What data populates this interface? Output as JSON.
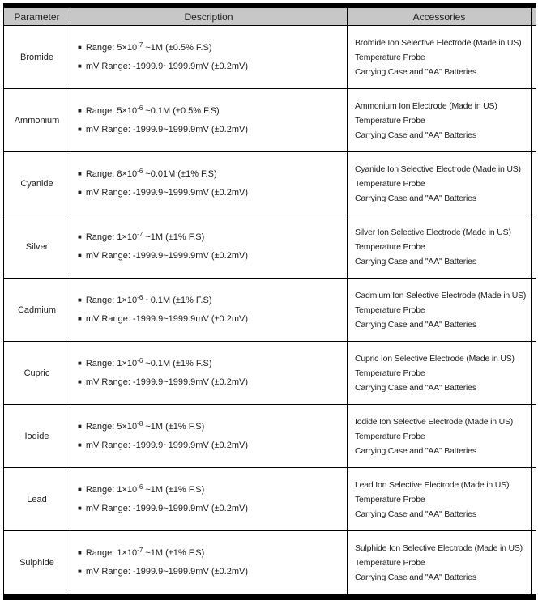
{
  "table": {
    "header": {
      "parameter": "Parameter",
      "description": "Description",
      "accessories": "Accessories"
    },
    "bullet": "■",
    "rows": [
      {
        "parameter": "Bromide",
        "range": {
          "prefix": "Range: 5×10",
          "exp": "-7",
          "suffix": " ~1M (±0.5% F.S)"
        },
        "mv_range": "mV Range: -1999.9~1999.9mV (±0.2mV)",
        "accessories": [
          "Bromide Ion Selective Electrode (Made in US)",
          "Temperature Probe",
          "Carrying Case and \"AA\" Batteries"
        ]
      },
      {
        "parameter": "Ammonium",
        "range": {
          "prefix": "Range: 5×10",
          "exp": "-6",
          "suffix": " ~0.1M (±0.5% F.S)"
        },
        "mv_range": "mV Range: -1999.9~1999.9mV (±0.2mV)",
        "accessories": [
          "Ammonium Ion Electrode (Made in US)",
          "Temperature Probe",
          "Carrying Case and \"AA\" Batteries"
        ]
      },
      {
        "parameter": "Cyanide",
        "range": {
          "prefix": "Range: 8×10",
          "exp": "-6",
          "suffix": " ~0.01M (±1% F.S)"
        },
        "mv_range": "mV Range: -1999.9~1999.9mV (±0.2mV)",
        "accessories": [
          "Cyanide Ion Selective Electrode (Made in US)",
          "Temperature Probe",
          "Carrying Case and \"AA\" Batteries"
        ]
      },
      {
        "parameter": "Silver",
        "range": {
          "prefix": "Range: 1×10",
          "exp": "-7",
          "suffix": " ~1M (±1% F.S)"
        },
        "mv_range": "mV Range: -1999.9~1999.9mV (±0.2mV)",
        "accessories": [
          "Silver Ion Selective Electrode (Made in US)",
          "Temperature Probe",
          "Carrying Case and \"AA\" Batteries"
        ]
      },
      {
        "parameter": "Cadmium",
        "range": {
          "prefix": "Range: 1×10",
          "exp": "-6",
          "suffix": " ~0.1M (±1% F.S)"
        },
        "mv_range": "mV Range: -1999.9~1999.9mV (±0.2mV)",
        "accessories": [
          "Cadmium Ion Selective Electrode (Made in US)",
          "Temperature Probe",
          "Carrying Case and \"AA\" Batteries"
        ]
      },
      {
        "parameter": "Cupric",
        "range": {
          "prefix": "Range: 1×10",
          "exp": "-6",
          "suffix": " ~0.1M (±1% F.S)"
        },
        "mv_range": "mV Range: -1999.9~1999.9mV (±0.2mV)",
        "accessories": [
          "Cupric Ion Selective Electrode (Made in US)",
          "Temperature Probe",
          "Carrying Case and \"AA\" Batteries"
        ]
      },
      {
        "parameter": "Iodide",
        "range": {
          "prefix": "Range: 5×10",
          "exp": "-8",
          "suffix": " ~1M (±1% F.S)"
        },
        "mv_range": "mV Range: -1999.9~1999.9mV (±0.2mV)",
        "accessories": [
          "Iodide Ion Selective Electrode (Made in US)",
          "Temperature Probe",
          "Carrying Case and \"AA\" Batteries"
        ]
      },
      {
        "parameter": "Lead",
        "range": {
          "prefix": "Range: 1×10",
          "exp": "-6",
          "suffix": " ~1M (±1% F.S)"
        },
        "mv_range": "mV Range: -1999.9~1999.9mV (±0.2mV)",
        "accessories": [
          "Lead Ion Selective Electrode (Made in US)",
          "Temperature Probe",
          "Carrying Case and \"AA\" Batteries"
        ]
      },
      {
        "parameter": "Sulphide",
        "range": {
          "prefix": "Range: 1×10",
          "exp": "-7",
          "suffix": " ~1M (±1% F.S)"
        },
        "mv_range": "mV Range: -1999.9~1999.9mV (±0.2mV)",
        "accessories": [
          "Sulphide Ion Selective Electrode (Made in US)",
          "Temperature Probe",
          "Carrying Case and \"AA\" Batteries"
        ]
      }
    ]
  }
}
